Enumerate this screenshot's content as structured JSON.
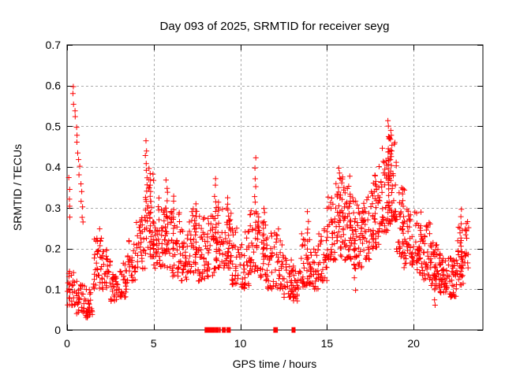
{
  "chart_data": {
    "type": "scatter",
    "title": "Day 093 of 2025, SRMTID for receiver seyg",
    "xlabel": "GPS time / hours",
    "ylabel": "SRMTID / TECUs",
    "xlim": [
      0,
      24
    ],
    "ylim": [
      0,
      0.7
    ],
    "x_ticks": [
      {
        "v": 0,
        "label": "0"
      },
      {
        "v": 5,
        "label": "5"
      },
      {
        "v": 10,
        "label": "10"
      },
      {
        "v": 15,
        "label": "15"
      },
      {
        "v": 20,
        "label": "20"
      }
    ],
    "y_ticks": [
      {
        "v": 0.0,
        "label": "0"
      },
      {
        "v": 0.1,
        "label": "0.1"
      },
      {
        "v": 0.2,
        "label": "0.2"
      },
      {
        "v": 0.3,
        "label": "0.3"
      },
      {
        "v": 0.4,
        "label": "0.4"
      },
      {
        "v": 0.5,
        "label": "0.5"
      },
      {
        "v": 0.6,
        "label": "0.6"
      },
      {
        "v": 0.7,
        "label": "0.7"
      }
    ],
    "grid": "dashed-major-both-axes",
    "legend": "none",
    "marker": "plus",
    "marker_color": "#ff0000",
    "grid_color": "#aaaaaa",
    "frame_color": "#000000",
    "text_color": "#000000",
    "background_color": "#ffffff",
    "seed": 42,
    "band_profile": [
      [
        0.02,
        0.5,
        0.06,
        0.16,
        28
      ],
      [
        0.5,
        1.0,
        0.04,
        0.12,
        30
      ],
      [
        1.0,
        1.5,
        0.03,
        0.1,
        30
      ],
      [
        1.5,
        2.0,
        0.1,
        0.25,
        34
      ],
      [
        2.0,
        2.5,
        0.1,
        0.2,
        32
      ],
      [
        2.5,
        3.0,
        0.07,
        0.14,
        30
      ],
      [
        3.0,
        3.5,
        0.08,
        0.17,
        30
      ],
      [
        3.5,
        4.0,
        0.12,
        0.22,
        30
      ],
      [
        4.0,
        4.5,
        0.15,
        0.28,
        34
      ],
      [
        4.5,
        5.0,
        0.18,
        0.4,
        40
      ],
      [
        5.0,
        5.5,
        0.15,
        0.33,
        36
      ],
      [
        5.5,
        6.0,
        0.15,
        0.3,
        34
      ],
      [
        6.0,
        6.5,
        0.13,
        0.3,
        36
      ],
      [
        6.5,
        7.0,
        0.12,
        0.25,
        34
      ],
      [
        7.0,
        7.5,
        0.14,
        0.3,
        36
      ],
      [
        7.5,
        8.0,
        0.12,
        0.28,
        34
      ],
      [
        8.0,
        8.5,
        0.13,
        0.28,
        34
      ],
      [
        8.5,
        9.0,
        0.15,
        0.32,
        36
      ],
      [
        9.0,
        9.5,
        0.15,
        0.3,
        36
      ],
      [
        9.5,
        10.0,
        0.11,
        0.25,
        32
      ],
      [
        10.0,
        10.5,
        0.1,
        0.25,
        32
      ],
      [
        10.5,
        11.0,
        0.14,
        0.3,
        34
      ],
      [
        11.0,
        11.5,
        0.12,
        0.28,
        34
      ],
      [
        11.5,
        12.0,
        0.1,
        0.24,
        30
      ],
      [
        12.0,
        12.5,
        0.1,
        0.26,
        34
      ],
      [
        12.5,
        13.0,
        0.08,
        0.18,
        32
      ],
      [
        13.0,
        13.5,
        0.07,
        0.16,
        30
      ],
      [
        13.5,
        14.0,
        0.1,
        0.24,
        30
      ],
      [
        14.0,
        14.5,
        0.1,
        0.2,
        32
      ],
      [
        14.5,
        15.0,
        0.12,
        0.25,
        34
      ],
      [
        15.0,
        15.5,
        0.17,
        0.33,
        38
      ],
      [
        15.5,
        16.0,
        0.18,
        0.38,
        38
      ],
      [
        16.0,
        16.5,
        0.17,
        0.35,
        38
      ],
      [
        16.5,
        17.0,
        0.15,
        0.32,
        38
      ],
      [
        17.0,
        17.5,
        0.17,
        0.33,
        36
      ],
      [
        17.5,
        18.0,
        0.2,
        0.38,
        38
      ],
      [
        18.0,
        18.5,
        0.24,
        0.45,
        40
      ],
      [
        18.5,
        19.0,
        0.26,
        0.48,
        42
      ],
      [
        19.0,
        19.5,
        0.18,
        0.35,
        36
      ],
      [
        19.5,
        20.0,
        0.16,
        0.3,
        36
      ],
      [
        20.0,
        20.5,
        0.14,
        0.3,
        38
      ],
      [
        20.5,
        21.0,
        0.12,
        0.27,
        38
      ],
      [
        21.0,
        21.5,
        0.1,
        0.22,
        40
      ],
      [
        21.5,
        22.0,
        0.09,
        0.2,
        40
      ],
      [
        22.0,
        22.5,
        0.08,
        0.18,
        38
      ],
      [
        22.5,
        23.0,
        0.11,
        0.26,
        34
      ],
      [
        23.0,
        23.2,
        0.15,
        0.27,
        12
      ]
    ],
    "spike_columns": [
      [
        0.32,
        0.6,
        0.95,
        0.26,
        18
      ],
      [
        0.12,
        0.37,
        0.18,
        0.28,
        5
      ],
      [
        4.55,
        0.46,
        4.62,
        0.25,
        13
      ],
      [
        4.75,
        0.4,
        4.8,
        0.22,
        11
      ],
      [
        5.75,
        0.37,
        5.78,
        0.2,
        10
      ],
      [
        6.15,
        0.33,
        6.18,
        0.18,
        9
      ],
      [
        7.4,
        0.31,
        7.45,
        0.18,
        9
      ],
      [
        8.55,
        0.37,
        8.6,
        0.2,
        10
      ],
      [
        9.3,
        0.33,
        9.33,
        0.2,
        9
      ],
      [
        10.85,
        0.42,
        10.88,
        0.22,
        10
      ],
      [
        11.35,
        0.3,
        11.38,
        0.18,
        8
      ],
      [
        13.9,
        0.29,
        13.92,
        0.16,
        8
      ],
      [
        15.7,
        0.4,
        15.73,
        0.24,
        11
      ],
      [
        16.3,
        0.38,
        16.33,
        0.2,
        9
      ],
      [
        16.6,
        0.27,
        16.62,
        0.1,
        8
      ],
      [
        17.8,
        0.38,
        17.83,
        0.22,
        9
      ],
      [
        18.55,
        0.51,
        18.58,
        0.3,
        15
      ],
      [
        18.7,
        0.49,
        18.74,
        0.28,
        13
      ],
      [
        19.4,
        0.3,
        19.43,
        0.15,
        8
      ],
      [
        21.2,
        0.16,
        21.23,
        0.06,
        7
      ],
      [
        22.75,
        0.3,
        22.78,
        0.13,
        10
      ]
    ],
    "zero_value_markers": [
      [
        8.05,
        5
      ],
      [
        8.22,
        4
      ],
      [
        8.42,
        5
      ],
      [
        8.65,
        5
      ],
      [
        8.82,
        2
      ],
      [
        9.05,
        5
      ],
      [
        9.25,
        2
      ],
      [
        9.33,
        2
      ],
      [
        9.4,
        2
      ],
      [
        11.95,
        2
      ],
      [
        12.03,
        2
      ],
      [
        12.12,
        2
      ],
      [
        13.07,
        5
      ]
    ]
  }
}
